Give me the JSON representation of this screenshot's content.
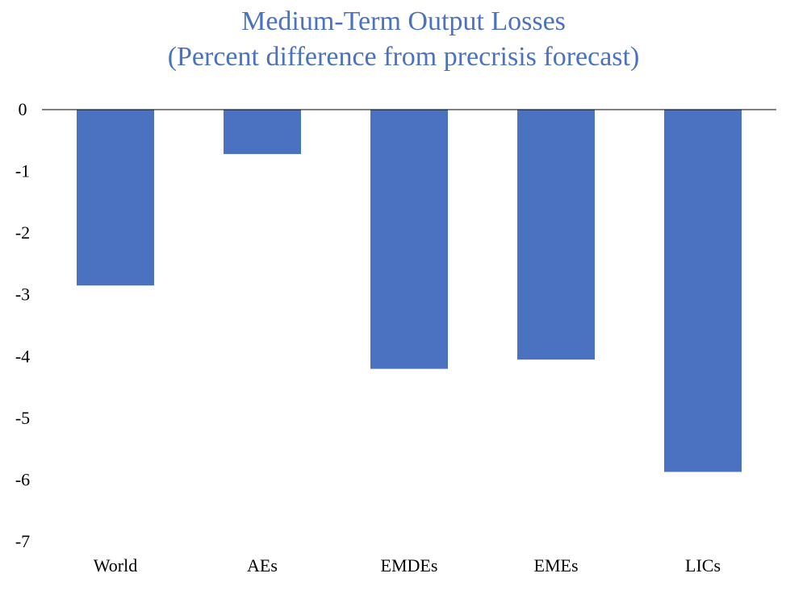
{
  "chart_data": {
    "type": "bar",
    "title": "Medium-Term Output Losses",
    "subtitle": "(Percent difference from precrisis forecast)",
    "categories": [
      "World",
      "AEs",
      "EMDEs",
      "EMEs",
      "LICs"
    ],
    "values": [
      -2.85,
      -0.72,
      -4.2,
      -4.05,
      -5.87
    ],
    "ylim": [
      -7,
      0
    ],
    "yticks": [
      "0",
      "-1",
      "-2",
      "-3",
      "-4",
      "-5",
      "-6",
      "-7"
    ],
    "ytick_values": [
      0,
      -1,
      -2,
      -3,
      -4,
      -5,
      -6,
      -7
    ],
    "grid": false,
    "legend": "none",
    "bar_color": "#4a72c0",
    "title_color": "#4a72c0"
  }
}
